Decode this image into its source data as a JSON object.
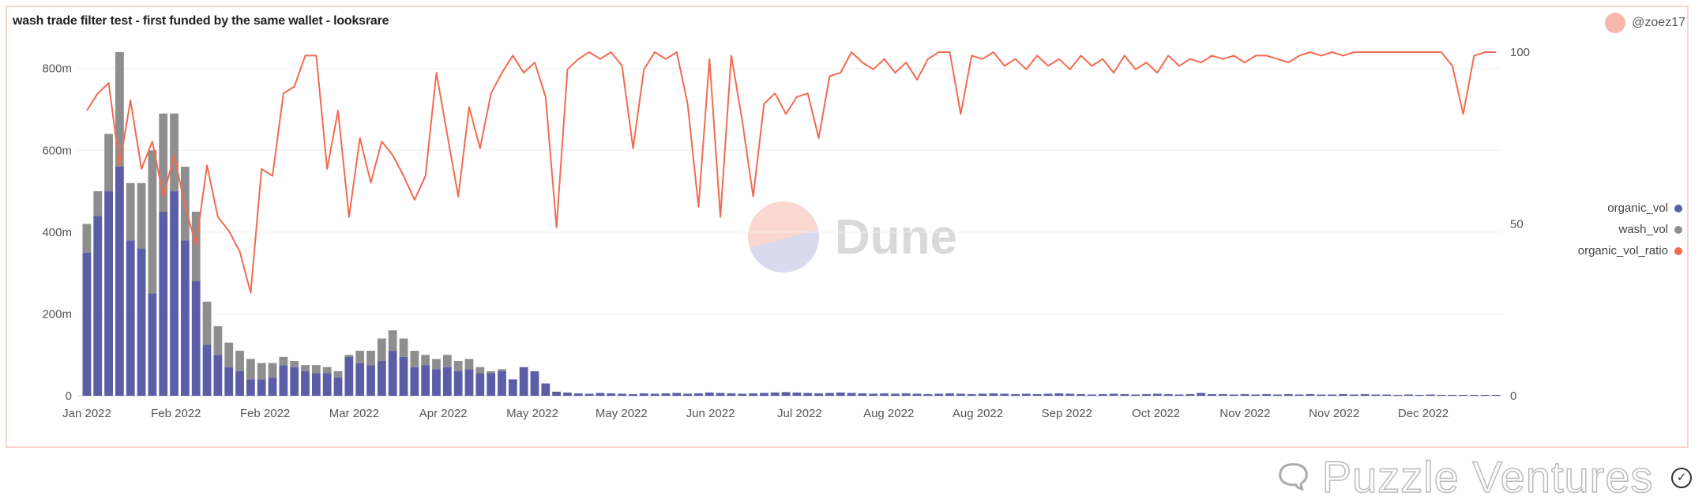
{
  "title": "wash trade filter test - first funded by the same wallet - looksrare",
  "author_badge": "@zoez17",
  "watermarks": {
    "dune": "Dune",
    "puzzle": "Puzzle Ventures"
  },
  "colors": {
    "organic_vol": "#5b5ea6",
    "wash_vol": "#8e8e8e",
    "organic_vol_ratio": "#f26b50",
    "frame": "#f9d3ce"
  },
  "chart_data": {
    "type": "bar+line",
    "title": "wash trade filter test - first funded by the same wallet - looksrare",
    "x_tick_labels": [
      "Jan 2022",
      "Feb 2022",
      "Feb 2022",
      "Mar 2022",
      "Apr 2022",
      "May 2022",
      "May 2022",
      "Jun 2022",
      "Jul 2022",
      "Aug 2022",
      "Aug 2022",
      "Sep 2022",
      "Oct 2022",
      "Nov 2022",
      "Nov 2022",
      "Dec 2022"
    ],
    "y_left": {
      "ticks": [
        0,
        200,
        400,
        600,
        800
      ],
      "tick_labels": [
        "0",
        "200m",
        "400m",
        "600m",
        "800m"
      ],
      "ylim": [
        0,
        840
      ],
      "unit": "m"
    },
    "y_right": {
      "ticks": [
        0,
        50,
        100
      ],
      "tick_labels": [
        "0",
        "50",
        "100"
      ],
      "ylim": [
        0,
        100
      ]
    },
    "grid": true,
    "legend": {
      "placement": "right",
      "entries": [
        "organic_vol",
        "wash_vol",
        "organic_vol_ratio"
      ]
    },
    "series": [
      {
        "name": "organic_vol",
        "type": "stacked-bar",
        "axis": "left",
        "values": [
          350,
          440,
          500,
          560,
          380,
          360,
          250,
          450,
          500,
          380,
          280,
          125,
          100,
          70,
          60,
          40,
          40,
          45,
          75,
          70,
          60,
          55,
          55,
          45,
          95,
          80,
          75,
          85,
          110,
          95,
          70,
          75,
          65,
          70,
          60,
          65,
          55,
          55,
          60,
          40,
          70,
          60,
          30,
          10,
          8,
          6,
          5,
          7,
          6,
          5,
          4,
          6,
          5,
          6,
          7,
          5,
          6,
          8,
          7,
          6,
          5,
          6,
          7,
          8,
          9,
          8,
          7,
          6,
          7,
          8,
          7,
          6,
          5,
          6,
          5,
          6,
          5,
          4,
          5,
          6,
          5,
          4,
          5,
          6,
          5,
          4,
          5,
          4,
          5,
          6,
          5,
          4,
          3,
          4,
          5,
          4,
          3,
          4,
          5,
          4,
          3,
          4,
          7,
          4,
          4,
          3,
          4,
          3,
          4,
          3,
          4,
          3,
          4,
          3,
          3,
          4,
          3,
          4,
          3,
          3,
          2,
          3,
          2,
          3,
          2,
          2,
          2,
          2,
          2,
          2
        ]
      },
      {
        "name": "wash_vol",
        "type": "stacked-bar",
        "axis": "left",
        "values": [
          70,
          60,
          140,
          280,
          140,
          160,
          350,
          240,
          190,
          180,
          170,
          105,
          70,
          60,
          50,
          50,
          40,
          35,
          20,
          15,
          15,
          20,
          15,
          15,
          5,
          30,
          35,
          55,
          50,
          45,
          40,
          25,
          25,
          30,
          25,
          25,
          15,
          5,
          5,
          0,
          0,
          0,
          0,
          0,
          0,
          0,
          0,
          0,
          0,
          0,
          0,
          0,
          0,
          0,
          0,
          0,
          0,
          0,
          0,
          0,
          0,
          0,
          0,
          0,
          0,
          0,
          0,
          0,
          0,
          0,
          0,
          0,
          0,
          0,
          0,
          0,
          0,
          0,
          0,
          0,
          0,
          0,
          0,
          0,
          0,
          0,
          0,
          0,
          0,
          0,
          0,
          0,
          0,
          0,
          0,
          0,
          0,
          0,
          0,
          0,
          0,
          0,
          0,
          0,
          0,
          0,
          0,
          0,
          0,
          0,
          0,
          0,
          0,
          0,
          0,
          0,
          0,
          0,
          0,
          0,
          0,
          0,
          0,
          0,
          0,
          0,
          0,
          0,
          0,
          0
        ]
      },
      {
        "name": "organic_vol_ratio",
        "type": "line",
        "axis": "right",
        "values": [
          83,
          88,
          91,
          67,
          86,
          66,
          74,
          58,
          70,
          55,
          44,
          67,
          52,
          48,
          42,
          30,
          66,
          64,
          88,
          90,
          99,
          99,
          66,
          83,
          52,
          75,
          62,
          74,
          70,
          64,
          57,
          64,
          94,
          76,
          58,
          84,
          72,
          88,
          94,
          99,
          94,
          97,
          87,
          49,
          95,
          98,
          100,
          98,
          100,
          96,
          72,
          95,
          100,
          98,
          100,
          85,
          55,
          98,
          52,
          99,
          80,
          58,
          85,
          88,
          82,
          87,
          88,
          75,
          93,
          94,
          100,
          97,
          95,
          98,
          94,
          97,
          92,
          98,
          100,
          100,
          82,
          99,
          98,
          100,
          96,
          98,
          95,
          99,
          96,
          98,
          95,
          99,
          96,
          98,
          94,
          99,
          95,
          97,
          94,
          99,
          96,
          98,
          97,
          99,
          98,
          99,
          97,
          99,
          99,
          98,
          97,
          99,
          100,
          99,
          100,
          99,
          100,
          100,
          100,
          100,
          100,
          100,
          100,
          100,
          100,
          96,
          82,
          99,
          100,
          100
        ]
      }
    ]
  }
}
